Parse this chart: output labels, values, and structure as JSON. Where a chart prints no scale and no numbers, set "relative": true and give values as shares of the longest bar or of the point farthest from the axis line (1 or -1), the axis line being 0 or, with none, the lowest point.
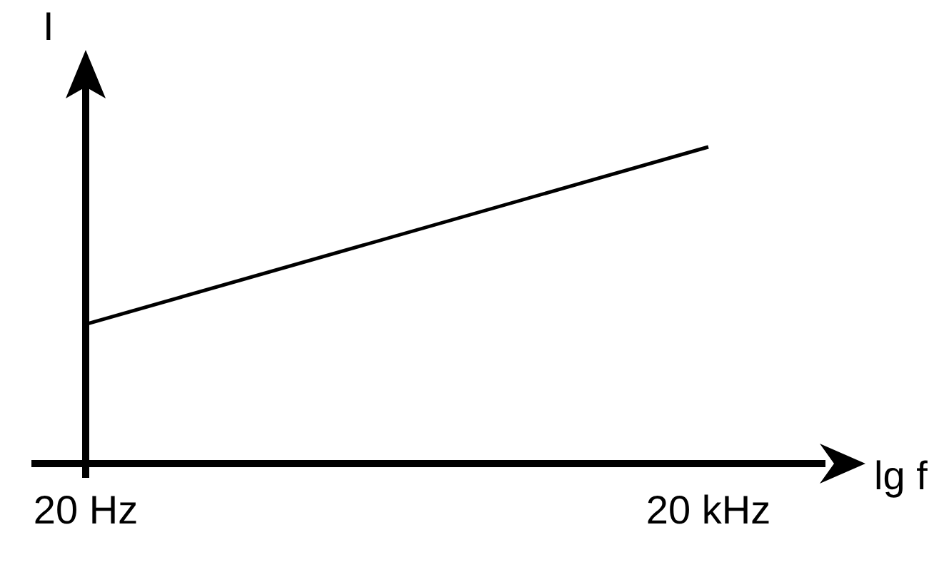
{
  "chart_data": {
    "type": "line",
    "xlabel": "lg f",
    "ylabel": "I",
    "relative": true,
    "tick_labels": "x",
    "categories": [
      "20 Hz",
      "20 kHz"
    ],
    "series": [
      {
        "color": "#000000",
        "values": [
          0.44,
          1
        ]
      }
    ]
  }
}
